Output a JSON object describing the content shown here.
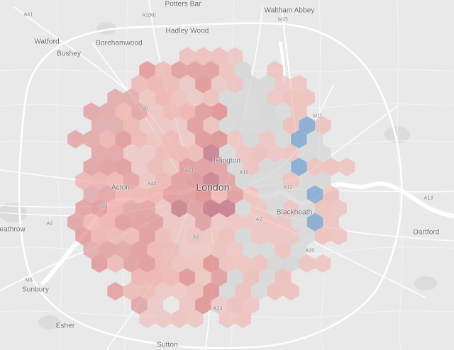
{
  "map": {
    "colors": {
      "background": "#e9e9e9",
      "water": "#ffffff",
      "road": "#ffffff",
      "minor_road": "#f5f5f5",
      "park": "#d6d6d6",
      "red_dark": "#b5435a",
      "red_mid": "#de8585",
      "red_light": "#efb0aa",
      "neutral": "#d4d4d4",
      "blue": "#7ba7cf"
    },
    "labels": {
      "potters_bar": "Potters Bar",
      "waltham_abbey": "Waltham Abbey",
      "watford": "Watford",
      "bushey": "Bushey",
      "borehamwood": "Borehamwood",
      "hadley_wood": "Hadley Wood",
      "london": "London",
      "islington": "Islington",
      "acton": "Acton",
      "blackheath": "Blackheath",
      "dartford": "Dartford",
      "heathrow": "Heathrow",
      "sunbury": "Sunbury",
      "esher": "Esher",
      "sutton": "Sutton",
      "a41_nw": "A41",
      "a1m": "A1(M)",
      "m25": "M25",
      "m1": "M1",
      "m11": "M11",
      "a41_c": "A41",
      "a10": "A10",
      "a40": "A40",
      "a12": "A12",
      "m4": "M4",
      "a4": "A4",
      "a3": "A3",
      "a2": "A2",
      "a20": "A20",
      "a13": "A13",
      "m3": "M3",
      "a23": "A23"
    }
  }
}
